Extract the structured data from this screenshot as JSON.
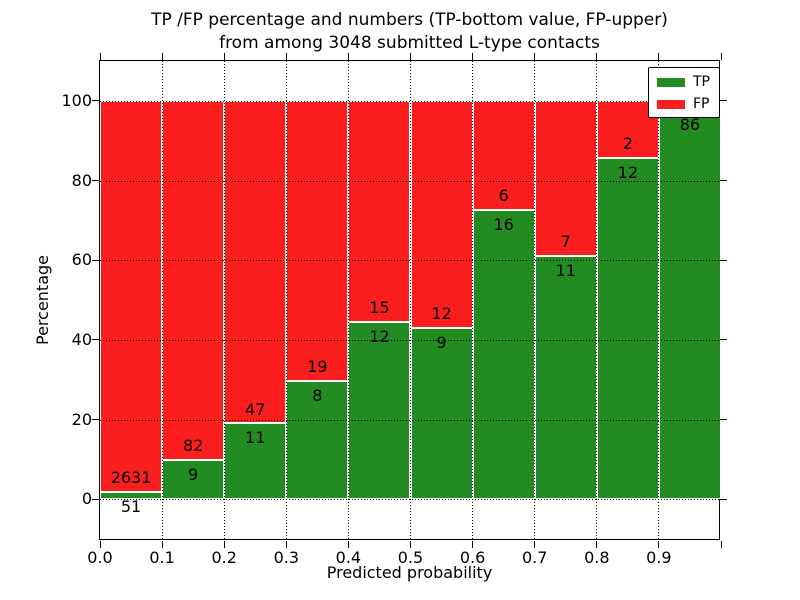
{
  "figure": {
    "title_line1": "TP /FP percentage and numbers (TP-bottom value, FP-upper)",
    "title_line2": "from among 3048 submitted L-type contacts",
    "background": "#ffffff"
  },
  "axes": {
    "xlabel": "Predicted probability",
    "ylabel": "Percentage",
    "x_ticks": [
      {
        "value": 0.0,
        "label": "0.0"
      },
      {
        "value": 0.1,
        "label": "0.1"
      },
      {
        "value": 0.2,
        "label": "0.2"
      },
      {
        "value": 0.3,
        "label": "0.3"
      },
      {
        "value": 0.4,
        "label": "0.4"
      },
      {
        "value": 0.5,
        "label": "0.5"
      },
      {
        "value": 0.6,
        "label": "0.6"
      },
      {
        "value": 0.7,
        "label": "0.7"
      },
      {
        "value": 0.8,
        "label": "0.8"
      },
      {
        "value": 0.9,
        "label": "0.9"
      },
      {
        "value": 1.0,
        "label": ""
      }
    ],
    "y_ticks": [
      {
        "value": 0,
        "label": "0"
      },
      {
        "value": 20,
        "label": "20"
      },
      {
        "value": 40,
        "label": "40"
      },
      {
        "value": 60,
        "label": "60"
      },
      {
        "value": 80,
        "label": "80"
      },
      {
        "value": 100,
        "label": "100"
      }
    ]
  },
  "legend": {
    "items": [
      {
        "label": "TP",
        "color": "#228b22"
      },
      {
        "label": "FP",
        "color": "#fb1e1e"
      }
    ]
  },
  "chart_data": {
    "type": "bar",
    "stacked": true,
    "title": "TP /FP percentage and numbers (TP-bottom value, FP-upper) from among 3048 submitted L-type contacts",
    "xlabel": "Predicted probability",
    "ylabel": "Percentage",
    "grid": true,
    "legend_position": "upper right",
    "xlim": [
      0.0,
      1.0
    ],
    "ylim": [
      -10.5,
      110
    ],
    "bin_width": 0.1,
    "categories": [
      0.0,
      0.1,
      0.2,
      0.3,
      0.4,
      0.5,
      0.6,
      0.7,
      0.8,
      0.9
    ],
    "series": [
      {
        "name": "TP",
        "color": "#228b22",
        "counts": [
          51,
          9,
          11,
          8,
          12,
          9,
          16,
          11,
          12,
          86
        ],
        "pct_of_bin": [
          1.9,
          9.9,
          19.0,
          29.6,
          44.4,
          42.9,
          72.7,
          61.1,
          85.7,
          97.7
        ]
      },
      {
        "name": "FP",
        "color": "#fb1e1e",
        "counts": [
          2631,
          82,
          47,
          19,
          15,
          12,
          6,
          7,
          2,
          null
        ],
        "pct_of_bin": [
          98.1,
          90.1,
          81.0,
          70.4,
          55.6,
          57.1,
          27.3,
          38.9,
          14.3,
          2.3
        ]
      }
    ]
  }
}
